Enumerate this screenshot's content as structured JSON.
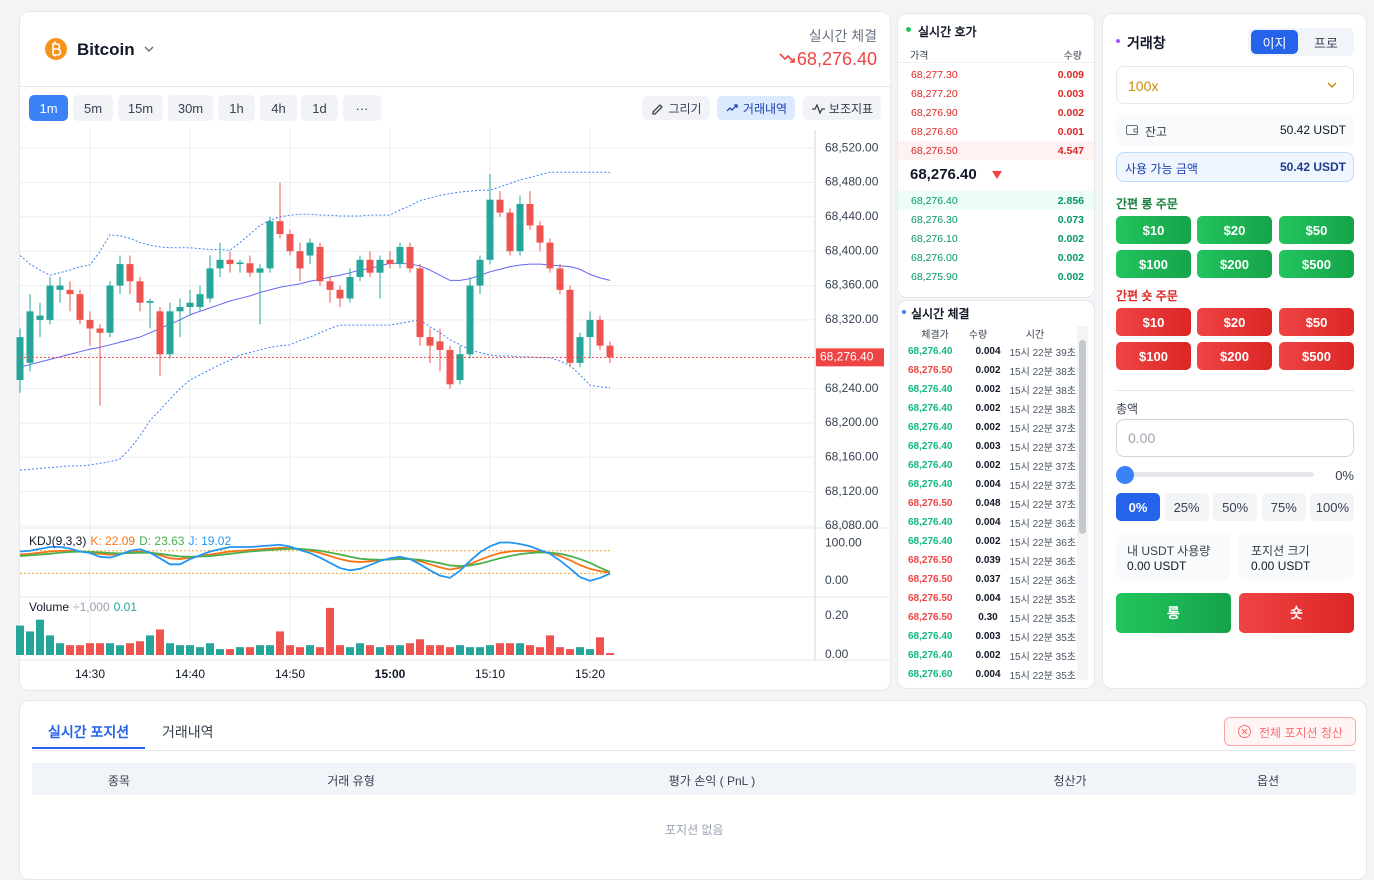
{
  "chart_data": [
    {
      "type": "candlestick",
      "categories": [
        null,
        null,
        null,
        null,
        null,
        null,
        null,
        "14:30",
        null,
        null,
        null,
        null,
        null,
        null,
        null,
        null,
        null,
        "14:40",
        null,
        null,
        null,
        null,
        null,
        null,
        null,
        null,
        null,
        "14:50",
        null,
        null,
        null,
        null,
        null,
        null,
        null,
        null,
        null,
        "15:00",
        null,
        null,
        null,
        null,
        null,
        null,
        null,
        null,
        null,
        "15:10",
        null,
        null,
        null,
        null,
        null,
        null,
        null,
        null,
        null,
        "15:20",
        null,
        null
      ],
      "open": [
        68250,
        68270,
        68320,
        68320,
        68355,
        68355,
        68350,
        68320,
        68310,
        68305,
        68360,
        68385,
        68365,
        68340,
        68330,
        68280,
        68330,
        68335,
        68335,
        68345,
        68380,
        68390,
        68385,
        68386,
        68375,
        68380,
        68435,
        68420,
        68400,
        68395,
        68405,
        68365,
        68355,
        68345,
        68370,
        68390,
        68375,
        68390,
        68385,
        68405,
        68380,
        68300,
        68295,
        68285,
        68250,
        68280,
        68360,
        68390,
        68460,
        68445,
        68400,
        68455,
        68430,
        68410,
        68380,
        68355,
        68270,
        68300,
        68320,
        68290
      ],
      "high": [
        68310,
        68350,
        68340,
        68370,
        68370,
        68365,
        68355,
        68330,
        68315,
        68365,
        68395,
        68395,
        68370,
        68345,
        68335,
        68340,
        68345,
        68355,
        68360,
        68395,
        68410,
        68400,
        68390,
        68395,
        68385,
        68440,
        68480,
        68425,
        68410,
        68415,
        68410,
        68370,
        68360,
        68380,
        68395,
        68400,
        68395,
        68400,
        68410,
        68410,
        68385,
        68310,
        68310,
        68290,
        68290,
        68370,
        68395,
        68490,
        68470,
        68450,
        68465,
        68470,
        68435,
        68415,
        68385,
        68360,
        68305,
        68330,
        68325,
        68295
      ],
      "low": [
        68235,
        68260,
        68300,
        68315,
        68340,
        68330,
        68315,
        68290,
        68220,
        68300,
        68350,
        68350,
        68330,
        68310,
        68255,
        68275,
        68300,
        68325,
        68330,
        68340,
        68370,
        68375,
        68375,
        68370,
        68315,
        68375,
        68415,
        68395,
        68365,
        68385,
        68360,
        68340,
        68335,
        68340,
        68365,
        68370,
        68345,
        68380,
        68380,
        68375,
        68290,
        68270,
        68260,
        68240,
        68245,
        68275,
        68350,
        68385,
        68440,
        68395,
        68395,
        68425,
        68400,
        68375,
        68350,
        68265,
        68265,
        68275,
        68285,
        68270
      ],
      "close": [
        68300,
        68330,
        68325,
        68360,
        68360,
        68350,
        68320,
        68310,
        68305,
        68360,
        68385,
        68365,
        68340,
        68342,
        68280,
        68330,
        68335,
        68340,
        68350,
        68380,
        68390,
        68385,
        68387,
        68375,
        68380,
        68435,
        68420,
        68400,
        68380,
        68410,
        68365,
        68355,
        68345,
        68370,
        68390,
        68375,
        68390,
        68385,
        68405,
        68380,
        68300,
        68290,
        68285,
        68245,
        68280,
        68360,
        68390,
        68460,
        68445,
        68400,
        68455,
        68430,
        68410,
        68380,
        68355,
        68270,
        68300,
        68320,
        68290,
        68276.4
      ],
      "up_color": "#26a69a",
      "down_color": "#ef5350",
      "lines": [
        {
          "color": "#6366f1",
          "dash": false,
          "values": [
            68265,
            68268,
            68271,
            68274,
            68277,
            68280,
            68283,
            68286,
            68288,
            68291,
            68294,
            68297,
            68300,
            68305,
            68310,
            68315,
            68320,
            68326,
            68330,
            68334,
            68338,
            68342,
            68345,
            68348,
            68352,
            68355,
            68358,
            68360,
            68362,
            68365,
            68367,
            68370,
            68372,
            68375,
            68378,
            68380,
            68383,
            68386,
            68386,
            68385,
            68383,
            68378,
            68372,
            68366,
            68366,
            68368,
            68372,
            68376,
            68379,
            68382,
            68384,
            68385,
            68385,
            68384,
            68383,
            68382,
            68379,
            68373,
            68369,
            68366
          ]
        },
        {
          "color": "#3b82f6",
          "dash": true,
          "values": [
            68395,
            68385,
            68378,
            68372,
            68375,
            68378,
            68382,
            68384,
            68400,
            68419,
            68418,
            68415,
            68410,
            68407,
            68405,
            68404,
            68404,
            68404,
            68403,
            68402,
            68402,
            68401,
            68410,
            68420,
            68430,
            68436,
            68440,
            68442,
            68443,
            68443,
            68442,
            68442,
            68441,
            68441,
            68441,
            68442,
            68442,
            68442,
            68448,
            68453,
            68459,
            68462,
            68465,
            68467,
            68469,
            68470,
            68471,
            68471,
            68475,
            68479,
            68483,
            68486,
            68489,
            68492,
            68492,
            68492,
            68492,
            68492,
            68492,
            68492
          ]
        },
        {
          "color": "#3b82f6",
          "dash": true,
          "values": [
            68145,
            68146,
            68147,
            68148,
            68149,
            68150,
            68150,
            68151,
            68153,
            68155,
            68158,
            68170,
            68185,
            68203,
            68215,
            68228,
            68240,
            68250,
            68256,
            68262,
            68268,
            68273,
            68279,
            68282,
            68285,
            68288,
            68290,
            68291,
            68296,
            68300,
            68305,
            68310,
            68314,
            68314,
            68314,
            68314,
            68314,
            68314,
            68316,
            68318,
            68320,
            68312,
            68305,
            68297,
            68291,
            68285,
            68282,
            68279,
            68278,
            68278,
            68277,
            68277,
            68276,
            68276,
            68272,
            68267,
            68256,
            68244,
            68242,
            68241
          ]
        }
      ],
      "price_line": {
        "value": 68276.4,
        "label": "68,276.40"
      },
      "price_line_color": "#ef4444",
      "ylim": [
        68080,
        68540
      ],
      "yticks": [
        {
          "value": 68520,
          "label": "68,520.00"
        },
        {
          "value": 68480,
          "label": "68,480.00"
        },
        {
          "value": 68440,
          "label": "68,440.00"
        },
        {
          "value": 68400,
          "label": "68,400.00"
        },
        {
          "value": 68360,
          "label": "68,360.00"
        },
        {
          "value": 68320,
          "label": "68,320.00"
        },
        {
          "value": 68280,
          "label": "68,280.00"
        },
        {
          "value": 68240,
          "label": "68,240.00"
        },
        {
          "value": 68200,
          "label": "68,200.00"
        },
        {
          "value": 68160,
          "label": "68,160.00"
        },
        {
          "value": 68120,
          "label": "68,120.00"
        },
        {
          "value": 68080,
          "label": "68,080.00"
        }
      ],
      "grid": true
    },
    {
      "type": "line",
      "title": "KDJ(9,3,3)",
      "series": [
        {
          "name": "K",
          "legend": "K: 22.09",
          "color": "#f97316",
          "values": [
            70,
            72,
            75,
            78,
            80,
            80,
            78,
            76,
            72,
            70,
            72,
            76,
            78,
            75,
            68,
            60,
            58,
            62,
            66,
            70,
            74,
            78,
            80,
            82,
            84,
            86,
            88,
            87,
            84,
            80,
            74,
            66,
            58,
            52,
            50,
            52,
            55,
            58,
            60,
            58,
            52,
            44,
            36,
            30,
            35,
            45,
            56,
            66,
            74,
            78,
            80,
            80,
            78,
            74,
            66,
            55,
            42,
            32,
            26,
            22.09
          ]
        },
        {
          "name": "D",
          "legend": "D: 23.63",
          "color": "#4caf50",
          "values": [
            66,
            68,
            70,
            72,
            75,
            77,
            78,
            77,
            76,
            74,
            73,
            74,
            75,
            75,
            72,
            68,
            65,
            64,
            65,
            66,
            69,
            72,
            75,
            78,
            80,
            82,
            84,
            85,
            85,
            83,
            80,
            75,
            70,
            64,
            59,
            57,
            56,
            57,
            58,
            58,
            56,
            52,
            47,
            41,
            39,
            41,
            46,
            53,
            60,
            66,
            71,
            74,
            76,
            75,
            72,
            66,
            58,
            48,
            35,
            23.63
          ]
        },
        {
          "name": "J",
          "legend": "J: 19.02",
          "color": "#2196f3",
          "values": [
            78,
            80,
            85,
            90,
            90,
            86,
            78,
            74,
            64,
            62,
            70,
            80,
            84,
            75,
            60,
            44,
            44,
            58,
            68,
            78,
            84,
            90,
            90,
            90,
            92,
            94,
            96,
            91,
            82,
            74,
            62,
            48,
            34,
            28,
            32,
            42,
            53,
            60,
            64,
            58,
            44,
            28,
            14,
            8,
            27,
            53,
            76,
            92,
            102,
            102,
            98,
            92,
            82,
            72,
            54,
            33,
            10,
            0,
            8,
            19.02
          ]
        }
      ],
      "levels": [
        80,
        20
      ],
      "level_color": "#f5a623",
      "ylim": [
        -35,
        130
      ],
      "yticks": [
        {
          "value": 100,
          "label": "100.00"
        },
        {
          "value": 0,
          "label": "0.00"
        }
      ]
    },
    {
      "type": "bar",
      "title": "Volume",
      "subtitle": "÷1,000",
      "current": "0.01",
      "current_color": "#26a69a",
      "values": [
        0.15,
        0.12,
        0.18,
        0.1,
        0.06,
        0.05,
        0.05,
        0.06,
        0.06,
        0.06,
        0.05,
        0.06,
        0.07,
        0.1,
        0.13,
        0.06,
        0.05,
        0.05,
        0.04,
        0.06,
        0.03,
        0.03,
        0.04,
        0.04,
        0.05,
        0.05,
        0.12,
        0.05,
        0.04,
        0.05,
        0.04,
        0.24,
        0.05,
        0.04,
        0.06,
        0.05,
        0.04,
        0.05,
        0.05,
        0.06,
        0.08,
        0.05,
        0.05,
        0.04,
        0.05,
        0.04,
        0.04,
        0.05,
        0.06,
        0.06,
        0.06,
        0.05,
        0.04,
        0.1,
        0.04,
        0.03,
        0.04,
        0.03,
        0.09,
        0.01
      ],
      "ylim": [
        0,
        0.28
      ],
      "yticks": [
        {
          "value": 0.2,
          "label": "0.20"
        },
        {
          "value": 0,
          "label": "0.00"
        }
      ]
    }
  ],
  "header": {
    "asset": "Bitcoin",
    "realtime_label": "실시간 체결",
    "price": "68,276.40"
  },
  "timeframes": [
    "1m",
    "5m",
    "15m",
    "30m",
    "1h",
    "4h",
    "1d",
    "···"
  ],
  "tools": [
    "그리기",
    "거래내역",
    "보조지표"
  ],
  "order_book": {
    "title": "실시간 호가",
    "columns": [
      "가격",
      "수량"
    ],
    "asks": [
      [
        "68,277.30",
        "0.009"
      ],
      [
        "68,277.20",
        "0.003"
      ],
      [
        "68,276.90",
        "0.002"
      ],
      [
        "68,276.60",
        "0.001"
      ],
      [
        "68,276.50",
        "4.547"
      ]
    ],
    "mid": "68,276.40",
    "bids": [
      [
        "68,276.40",
        "2.856"
      ],
      [
        "68,276.30",
        "0.073"
      ],
      [
        "68,276.10",
        "0.002"
      ],
      [
        "68,276.00",
        "0.002"
      ],
      [
        "68,275.90",
        "0.002"
      ]
    ]
  },
  "trades": {
    "title": "실시간 체결",
    "columns": [
      "체결가",
      "수량",
      "시간"
    ],
    "rows": [
      {
        "price": "68,276.40",
        "qty": "0.004",
        "time": "15시 22분 39초",
        "color": "#10b981"
      },
      {
        "price": "68,276.50",
        "qty": "0.002",
        "time": "15시 22분 38초",
        "color": "#ef4444"
      },
      {
        "price": "68,276.40",
        "qty": "0.002",
        "time": "15시 22분 38초",
        "color": "#10b981"
      },
      {
        "price": "68,276.40",
        "qty": "0.002",
        "time": "15시 22분 38초",
        "color": "#10b981"
      },
      {
        "price": "68,276.40",
        "qty": "0.002",
        "time": "15시 22분 37초",
        "color": "#10b981"
      },
      {
        "price": "68,276.40",
        "qty": "0.003",
        "time": "15시 22분 37초",
        "color": "#10b981"
      },
      {
        "price": "68,276.40",
        "qty": "0.002",
        "time": "15시 22분 37초",
        "color": "#10b981"
      },
      {
        "price": "68,276.40",
        "qty": "0.004",
        "time": "15시 22분 37초",
        "color": "#10b981"
      },
      {
        "price": "68,276.50",
        "qty": "0.048",
        "time": "15시 22분 37초",
        "color": "#ef4444"
      },
      {
        "price": "68,276.40",
        "qty": "0.004",
        "time": "15시 22분 36초",
        "color": "#10b981"
      },
      {
        "price": "68,276.40",
        "qty": "0.002",
        "time": "15시 22분 36초",
        "color": "#10b981"
      },
      {
        "price": "68,276.50",
        "qty": "0.039",
        "time": "15시 22분 36초",
        "color": "#ef4444"
      },
      {
        "price": "68,276.50",
        "qty": "0.037",
        "time": "15시 22분 36초",
        "color": "#ef4444"
      },
      {
        "price": "68,276.50",
        "qty": "0.004",
        "time": "15시 22분 35초",
        "color": "#ef4444"
      },
      {
        "price": "68,276.50",
        "qty": "0.30",
        "time": "15시 22분 35초",
        "color": "#ef4444"
      },
      {
        "price": "68,276.40",
        "qty": "0.003",
        "time": "15시 22분 35초",
        "color": "#10b981"
      },
      {
        "price": "68,276.40",
        "qty": "0.002",
        "time": "15시 22분 35초",
        "color": "#10b981"
      },
      {
        "price": "68,276.60",
        "qty": "0.004",
        "time": "15시 22분 35초",
        "color": "#10b981"
      }
    ]
  },
  "trade_panel": {
    "title": "거래창",
    "modes": [
      "이지",
      "프로"
    ],
    "leverage": "100x",
    "balance_label": "잔고",
    "balance": "50.42 USDT",
    "available_label": "사용 가능 금액",
    "available": "50.42 USDT",
    "long_title": "간편 롱 주문",
    "short_title": "간편 숏 주문",
    "quick_amounts": [
      "$10",
      "$20",
      "$50",
      "$100",
      "$200",
      "$500"
    ],
    "total_label": "총액",
    "total_placeholder": "0.00",
    "slider_value": "0%",
    "percents": [
      "0%",
      "25%",
      "50%",
      "75%",
      "100%"
    ],
    "usage_label": "내 USDT 사용량",
    "usage": "0.00 USDT",
    "size_label": "포지션 크기",
    "size": "0.00 USDT",
    "long": "롱",
    "short": "숏"
  },
  "positions": {
    "tabs": [
      "실시간 포지션",
      "거래내역"
    ],
    "close_all": "전체 포지션 청산",
    "columns": [
      "종목",
      "거래 유형",
      "평가 손익 ( PnL )",
      "청산가",
      "옵션"
    ],
    "empty": "포지션 없음"
  }
}
